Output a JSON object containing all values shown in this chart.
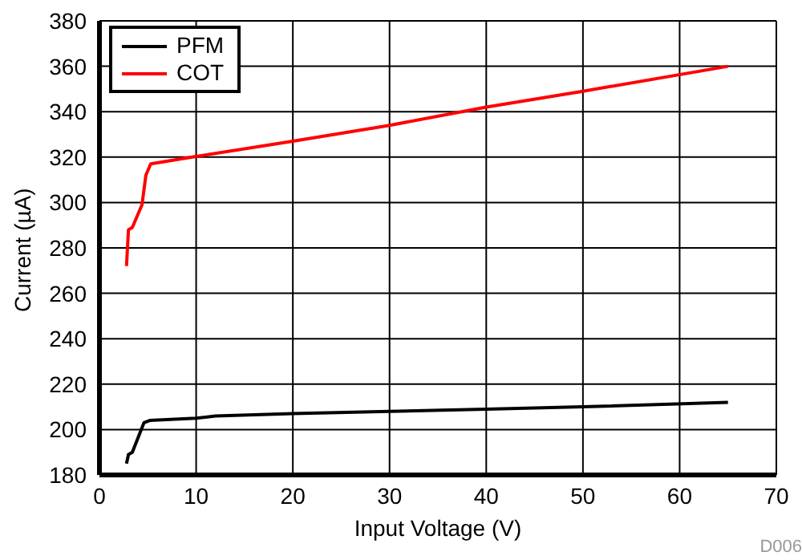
{
  "chart_data": {
    "type": "line",
    "xlabel": "Input Voltage (V)",
    "ylabel": "Current (µA)",
    "xlim": [
      0,
      70
    ],
    "xticks": [
      0,
      10,
      20,
      30,
      40,
      50,
      60,
      70
    ],
    "ylim": [
      180,
      380
    ],
    "yticks": [
      180,
      200,
      220,
      240,
      260,
      280,
      300,
      320,
      340,
      360,
      380
    ],
    "grid": true,
    "legend": "top left",
    "marker": "none",
    "line_style": "solid",
    "annotations": [
      "D006"
    ],
    "series": [
      {
        "name": "PFM",
        "color": "#000000",
        "x": [
          2.8,
          3,
          3.4,
          4.6,
          5.2,
          10,
          12,
          20,
          30,
          40,
          50,
          65
        ],
        "values": [
          185,
          189,
          190,
          203,
          204,
          205,
          206,
          207,
          208,
          209,
          210,
          212
        ]
      },
      {
        "name": "COT",
        "color": "#ff0000",
        "x": [
          2.8,
          3,
          3.4,
          4.4,
          4.8,
          5.3,
          9.6,
          20,
          30,
          40,
          50,
          65
        ],
        "values": [
          272,
          288,
          289,
          299,
          312,
          317,
          320,
          327,
          334,
          342,
          349,
          360
        ]
      }
    ]
  }
}
